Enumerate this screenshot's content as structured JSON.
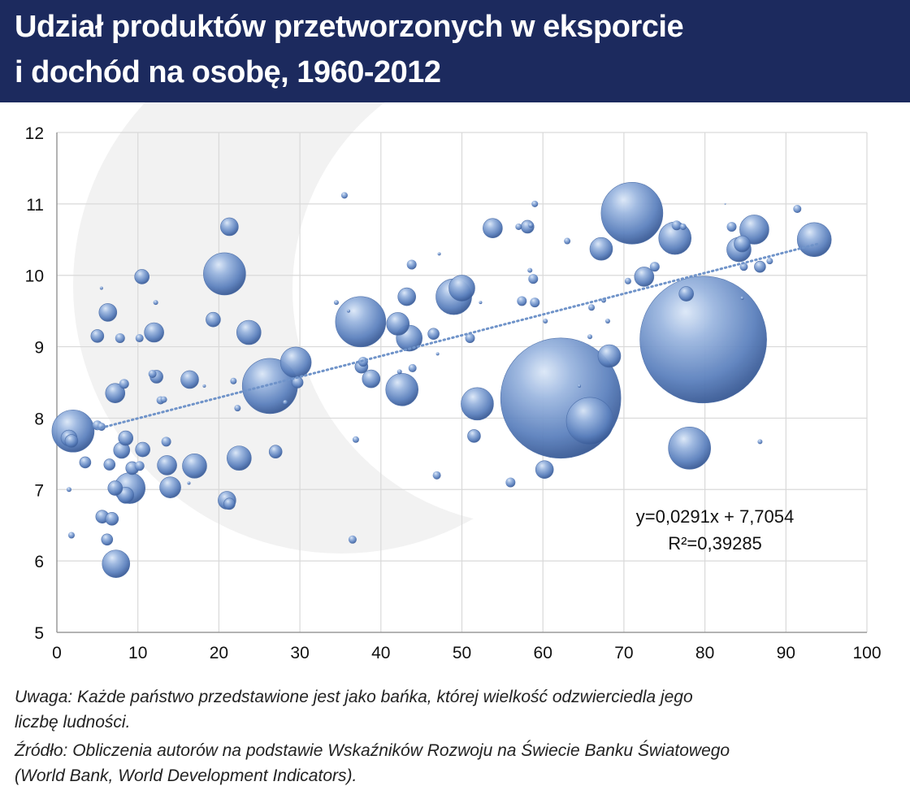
{
  "header": {
    "title_line1": "Udział produktów przetworzonych w eksporcie",
    "title_line2": "i dochód na osobę, 1960-2012",
    "background": "#1c2a5e"
  },
  "chart_data": {
    "type": "scatter",
    "xlim": [
      0,
      100
    ],
    "ylim": [
      5,
      12
    ],
    "x_ticks": [
      "0",
      "10",
      "20",
      "30",
      "40",
      "50",
      "60",
      "70",
      "80",
      "90",
      "100"
    ],
    "y_ticks": [
      "5",
      "6",
      "7",
      "8",
      "9",
      "10",
      "11",
      "12"
    ],
    "grid": true,
    "bubble_color": "#5b80bd",
    "trendline": {
      "slope": 0.0291,
      "intercept": 7.7054,
      "x_range": [
        5,
        94
      ],
      "style": "dotted",
      "equation": "y=0,0291x + 7,7054",
      "r_squared": "R²=0,39285"
    },
    "points": [
      {
        "x": 2,
        "y": 7.82,
        "s": 26
      },
      {
        "x": 1.5,
        "y": 7.72,
        "s": 10
      },
      {
        "x": 1.8,
        "y": 7.68,
        "s": 8
      },
      {
        "x": 3.5,
        "y": 7.38,
        "s": 7
      },
      {
        "x": 1.5,
        "y": 7.0,
        "s": 3
      },
      {
        "x": 1.8,
        "y": 6.36,
        "s": 4
      },
      {
        "x": 5,
        "y": 7.9,
        "s": 6
      },
      {
        "x": 5.5,
        "y": 7.88,
        "s": 5
      },
      {
        "x": 5,
        "y": 9.15,
        "s": 8
      },
      {
        "x": 6.3,
        "y": 9.48,
        "s": 11
      },
      {
        "x": 5.5,
        "y": 9.82,
        "s": 2
      },
      {
        "x": 7.2,
        "y": 8.35,
        "s": 12
      },
      {
        "x": 8.3,
        "y": 8.48,
        "s": 6
      },
      {
        "x": 7.8,
        "y": 9.12,
        "s": 6
      },
      {
        "x": 10.2,
        "y": 9.12,
        "s": 5
      },
      {
        "x": 10.5,
        "y": 9.98,
        "s": 9
      },
      {
        "x": 12,
        "y": 9.2,
        "s": 12
      },
      {
        "x": 12.2,
        "y": 9.62,
        "s": 3
      },
      {
        "x": 11.8,
        "y": 8.62,
        "s": 5
      },
      {
        "x": 12.3,
        "y": 8.58,
        "s": 8
      },
      {
        "x": 12.8,
        "y": 8.25,
        "s": 5
      },
      {
        "x": 13.2,
        "y": 8.26,
        "s": 4
      },
      {
        "x": 8.5,
        "y": 7.72,
        "s": 9
      },
      {
        "x": 8,
        "y": 7.55,
        "s": 10
      },
      {
        "x": 10.6,
        "y": 7.56,
        "s": 9
      },
      {
        "x": 13.5,
        "y": 7.67,
        "s": 6
      },
      {
        "x": 6.5,
        "y": 7.35,
        "s": 7
      },
      {
        "x": 9.3,
        "y": 7.3,
        "s": 8
      },
      {
        "x": 10.2,
        "y": 7.33,
        "s": 6
      },
      {
        "x": 7.2,
        "y": 7.02,
        "s": 9
      },
      {
        "x": 9,
        "y": 7.02,
        "s": 19
      },
      {
        "x": 8.5,
        "y": 6.92,
        "s": 10
      },
      {
        "x": 13.6,
        "y": 7.34,
        "s": 12
      },
      {
        "x": 14,
        "y": 7.03,
        "s": 13
      },
      {
        "x": 17,
        "y": 7.33,
        "s": 15
      },
      {
        "x": 16.3,
        "y": 7.09,
        "s": 2
      },
      {
        "x": 5.6,
        "y": 6.62,
        "s": 8
      },
      {
        "x": 6.8,
        "y": 6.59,
        "s": 8
      },
      {
        "x": 6.2,
        "y": 6.3,
        "s": 7
      },
      {
        "x": 7.3,
        "y": 5.96,
        "s": 17
      },
      {
        "x": 16.4,
        "y": 8.54,
        "s": 11
      },
      {
        "x": 18.2,
        "y": 8.45,
        "s": 2
      },
      {
        "x": 19.3,
        "y": 9.38,
        "s": 9
      },
      {
        "x": 20.7,
        "y": 10.02,
        "s": 26
      },
      {
        "x": 21.3,
        "y": 10.68,
        "s": 11
      },
      {
        "x": 23.7,
        "y": 9.2,
        "s": 15
      },
      {
        "x": 21.8,
        "y": 8.52,
        "s": 4
      },
      {
        "x": 22.3,
        "y": 8.14,
        "s": 4
      },
      {
        "x": 22.5,
        "y": 7.44,
        "s": 15
      },
      {
        "x": 21,
        "y": 6.85,
        "s": 11
      },
      {
        "x": 21.3,
        "y": 6.8,
        "s": 7
      },
      {
        "x": 26.3,
        "y": 8.45,
        "s": 34
      },
      {
        "x": 29.5,
        "y": 8.78,
        "s": 19
      },
      {
        "x": 29.7,
        "y": 8.5,
        "s": 7
      },
      {
        "x": 27,
        "y": 7.53,
        "s": 8
      },
      {
        "x": 28.2,
        "y": 8.22,
        "s": 3
      },
      {
        "x": 34.5,
        "y": 9.62,
        "s": 3
      },
      {
        "x": 35.5,
        "y": 11.12,
        "s": 4
      },
      {
        "x": 36,
        "y": 9.5,
        "s": 2
      },
      {
        "x": 37.5,
        "y": 9.35,
        "s": 31
      },
      {
        "x": 37.6,
        "y": 8.72,
        "s": 8
      },
      {
        "x": 37.8,
        "y": 8.79,
        "s": 6
      },
      {
        "x": 38.8,
        "y": 8.55,
        "s": 11
      },
      {
        "x": 36.9,
        "y": 7.7,
        "s": 4
      },
      {
        "x": 36.5,
        "y": 6.3,
        "s": 5
      },
      {
        "x": 42.1,
        "y": 9.32,
        "s": 14
      },
      {
        "x": 43.5,
        "y": 9.12,
        "s": 16
      },
      {
        "x": 43.2,
        "y": 9.7,
        "s": 11
      },
      {
        "x": 43.8,
        "y": 10.15,
        "s": 6
      },
      {
        "x": 42.3,
        "y": 8.65,
        "s": 3
      },
      {
        "x": 43.9,
        "y": 8.7,
        "s": 5
      },
      {
        "x": 42.6,
        "y": 8.4,
        "s": 20
      },
      {
        "x": 46.5,
        "y": 9.18,
        "s": 7
      },
      {
        "x": 47.2,
        "y": 10.3,
        "s": 2
      },
      {
        "x": 47,
        "y": 8.9,
        "s": 2
      },
      {
        "x": 46.9,
        "y": 7.2,
        "s": 5
      },
      {
        "x": 49,
        "y": 9.7,
        "s": 22
      },
      {
        "x": 50,
        "y": 9.82,
        "s": 16
      },
      {
        "x": 51,
        "y": 9.12,
        "s": 6
      },
      {
        "x": 52.3,
        "y": 9.62,
        "s": 2
      },
      {
        "x": 51.9,
        "y": 8.2,
        "s": 20
      },
      {
        "x": 51.5,
        "y": 7.75,
        "s": 8
      },
      {
        "x": 53.8,
        "y": 10.66,
        "s": 12
      },
      {
        "x": 56,
        "y": 7.1,
        "s": 6
      },
      {
        "x": 57,
        "y": 10.68,
        "s": 4
      },
      {
        "x": 57.4,
        "y": 9.64,
        "s": 6
      },
      {
        "x": 58.1,
        "y": 10.68,
        "s": 8
      },
      {
        "x": 58.4,
        "y": 10.07,
        "s": 3
      },
      {
        "x": 58.8,
        "y": 9.95,
        "s": 6
      },
      {
        "x": 59,
        "y": 11.0,
        "s": 4
      },
      {
        "x": 59,
        "y": 9.62,
        "s": 6
      },
      {
        "x": 58.5,
        "y": 10.7,
        "s": 3
      },
      {
        "x": 60.3,
        "y": 9.36,
        "s": 3
      },
      {
        "x": 62.2,
        "y": 8.28,
        "s": 74
      },
      {
        "x": 60.2,
        "y": 7.28,
        "s": 11
      },
      {
        "x": 63,
        "y": 10.48,
        "s": 4
      },
      {
        "x": 65.8,
        "y": 7.96,
        "s": 29
      },
      {
        "x": 66,
        "y": 9.55,
        "s": 4
      },
      {
        "x": 65.8,
        "y": 9.14,
        "s": 3
      },
      {
        "x": 64.5,
        "y": 8.45,
        "s": 2
      },
      {
        "x": 67.2,
        "y": 10.37,
        "s": 14
      },
      {
        "x": 67.5,
        "y": 9.65,
        "s": 3
      },
      {
        "x": 68,
        "y": 9.36,
        "s": 3
      },
      {
        "x": 68.2,
        "y": 8.87,
        "s": 14
      },
      {
        "x": 71,
        "y": 10.87,
        "s": 38
      },
      {
        "x": 70.5,
        "y": 9.92,
        "s": 4
      },
      {
        "x": 72.5,
        "y": 9.98,
        "s": 12
      },
      {
        "x": 73.8,
        "y": 10.12,
        "s": 6
      },
      {
        "x": 76.3,
        "y": 10.52,
        "s": 20
      },
      {
        "x": 76.5,
        "y": 10.7,
        "s": 6
      },
      {
        "x": 77.3,
        "y": 10.68,
        "s": 4
      },
      {
        "x": 77.7,
        "y": 9.74,
        "s": 9
      },
      {
        "x": 79.8,
        "y": 9.1,
        "s": 78
      },
      {
        "x": 78.1,
        "y": 7.58,
        "s": 26
      },
      {
        "x": 82.5,
        "y": 11.0,
        "s": 1
      },
      {
        "x": 83.3,
        "y": 10.68,
        "s": 6
      },
      {
        "x": 84.2,
        "y": 10.36,
        "s": 15
      },
      {
        "x": 84.6,
        "y": 10.44,
        "s": 10
      },
      {
        "x": 84.8,
        "y": 10.12,
        "s": 5
      },
      {
        "x": 84.6,
        "y": 9.68,
        "s": 2
      },
      {
        "x": 86.1,
        "y": 10.64,
        "s": 18
      },
      {
        "x": 86.8,
        "y": 10.12,
        "s": 7
      },
      {
        "x": 88,
        "y": 10.2,
        "s": 4
      },
      {
        "x": 86.8,
        "y": 7.67,
        "s": 3
      },
      {
        "x": 91.4,
        "y": 10.93,
        "s": 5
      },
      {
        "x": 93.5,
        "y": 10.5,
        "s": 21
      }
    ]
  },
  "notes": {
    "line1": "Uwaga: Każde państwo przedstawione jest jako bańka, której wielkość odzwierciedla jego",
    "line2": "liczbę ludności.",
    "line3": "Źródło: Obliczenia autorów na podstawie Wskaźników Rozwoju na Świecie Banku Światowego",
    "line4": "(World Bank,  World Development Indicators)."
  }
}
